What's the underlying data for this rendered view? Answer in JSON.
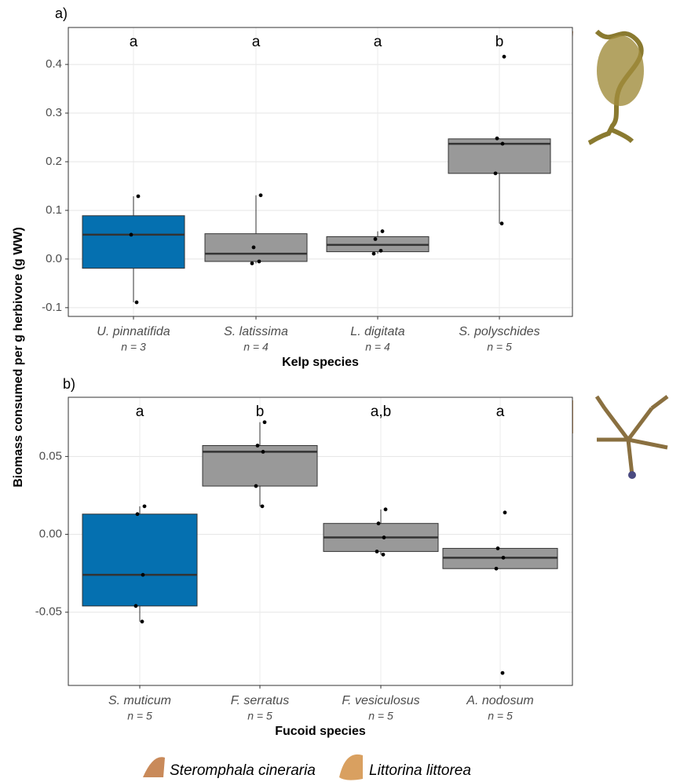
{
  "chart_data": [
    {
      "type": "box",
      "panel_label": "a)",
      "xlabel": "Kelp species",
      "ylabel": "Biomass consumed per g herbivore (g WW)",
      "categories": [
        "U. pinnatifida",
        "S. latissima",
        "L. digitata",
        "S. polyschides"
      ],
      "n_labels": [
        "n = 3",
        "n = 4",
        "n = 4",
        "n = 5"
      ],
      "letters": [
        "a",
        "a",
        "a",
        "b"
      ],
      "boxes": [
        {
          "color": "#0570b0",
          "whisker_low": -0.089,
          "q1": -0.019,
          "median": 0.05,
          "q3": 0.089,
          "whisker_high": 0.129,
          "points": [
            0.129,
            0.05,
            -0.089
          ]
        },
        {
          "color": "#999999",
          "whisker_low": -0.009,
          "q1": -0.005,
          "median": 0.011,
          "q3": 0.052,
          "whisker_high": 0.131,
          "points": [
            0.131,
            0.024,
            -0.005,
            -0.009
          ]
        },
        {
          "color": "#999999",
          "whisker_low": 0.011,
          "q1": 0.015,
          "median": 0.029,
          "q3": 0.046,
          "whisker_high": 0.057,
          "points": [
            0.057,
            0.041,
            0.017,
            0.011
          ]
        },
        {
          "color": "#999999",
          "whisker_low": 0.073,
          "q1": 0.176,
          "median": 0.237,
          "q3": 0.247,
          "whisker_high": 0.248,
          "points": [
            0.416,
            0.248,
            0.237,
            0.176,
            0.073
          ]
        }
      ],
      "ylim": [
        -0.118,
        0.476
      ],
      "yticks": [
        -0.1,
        {
          "value": 0,
          "label": "0.0"
        },
        0.1,
        0.2,
        0.3,
        0.4
      ],
      "grid": true
    },
    {
      "type": "box",
      "panel_label": "b)",
      "xlabel": "Fucoid species",
      "categories": [
        "S. muticum",
        "F. serratus",
        "F. vesiculosus",
        "A. nodosum"
      ],
      "n_labels": [
        "n = 5",
        "n = 5",
        "n = 5",
        "n = 5"
      ],
      "letters": [
        "a",
        "b",
        "a,b",
        "a"
      ],
      "boxes": [
        {
          "color": "#0570b0",
          "whisker_low": -0.056,
          "q1": -0.046,
          "median": -0.026,
          "q3": 0.013,
          "whisker_high": 0.018,
          "points": [
            0.018,
            0.013,
            -0.026,
            -0.046,
            -0.056
          ]
        },
        {
          "color": "#999999",
          "whisker_low": 0.018,
          "q1": 0.031,
          "median": 0.053,
          "q3": 0.057,
          "whisker_high": 0.072,
          "points": [
            0.072,
            0.057,
            0.053,
            0.031,
            0.018
          ]
        },
        {
          "color": "#999999",
          "whisker_low": -0.013,
          "q1": -0.011,
          "median": -0.002,
          "q3": 0.007,
          "whisker_high": 0.016,
          "points": [
            0.016,
            0.007,
            -0.002,
            -0.011,
            -0.013
          ]
        },
        {
          "color": "#999999",
          "whisker_low": -0.022,
          "q1": -0.022,
          "median": -0.015,
          "q3": -0.009,
          "whisker_high": -0.009,
          "points": [
            0.014,
            -0.009,
            -0.015,
            -0.022,
            -0.089
          ]
        }
      ],
      "ylim": [
        -0.097,
        0.088
      ],
      "yticks": [
        {
          "value": -0.05,
          "label": "-0.05"
        },
        {
          "value": 0,
          "label": "0.00"
        },
        0.05
      ],
      "grid": true
    }
  ],
  "legend": [
    "Steromphala cineraria",
    "Littorina littorea"
  ]
}
